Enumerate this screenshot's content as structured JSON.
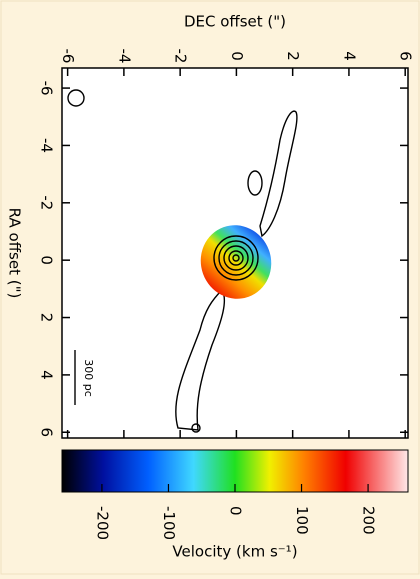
{
  "chart_data": {
    "type": "image",
    "xlabel": "DEC offset (\")",
    "ylabel": "RA offset (\")",
    "xlim": [
      -6.2,
      6.1
    ],
    "xticks": [
      -6,
      -4,
      -2,
      0,
      2,
      4,
      6
    ],
    "ylim": [
      -6.7,
      6.2
    ],
    "yticks": [
      -6,
      -4,
      -2,
      0,
      2,
      4,
      6
    ],
    "colorbar_label": "Velocity (km s⁻¹)",
    "clim": [
      -260,
      260
    ],
    "cticks": [
      -200,
      -100,
      0,
      100,
      200
    ],
    "scalebar_label": "300 pc"
  }
}
